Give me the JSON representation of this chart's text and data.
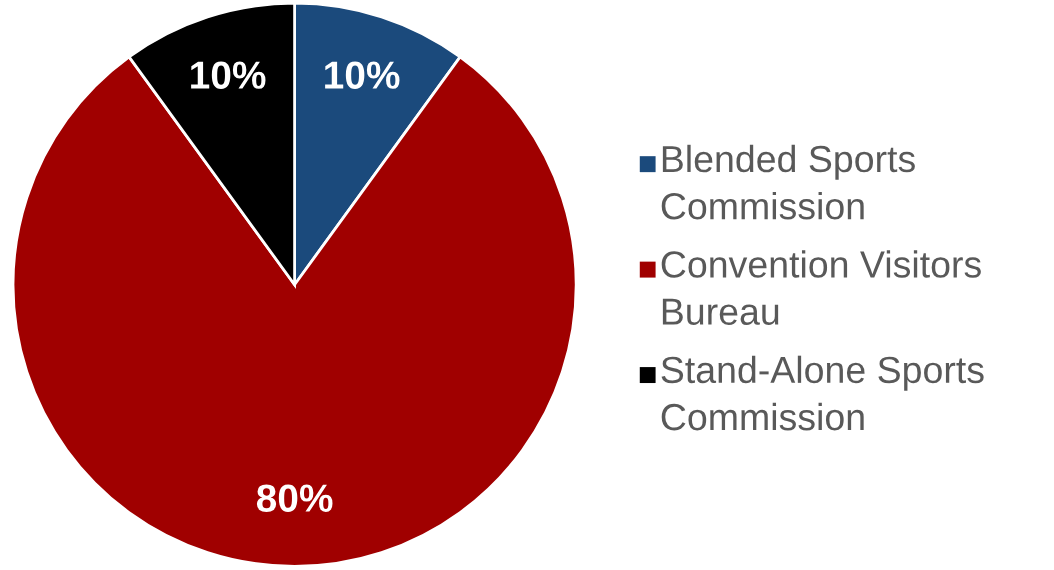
{
  "chart_data": {
    "type": "pie",
    "categories": [
      "Blended Sports Commission",
      "Convention Visitors Bureau",
      "Stand-Alone Sports Commission"
    ],
    "values": [
      10,
      80,
      10
    ],
    "colors": [
      "#1b4a7c",
      "#a00000",
      "#000000"
    ],
    "value_labels": [
      "10%",
      "80%",
      "10%"
    ],
    "legend": "right"
  }
}
